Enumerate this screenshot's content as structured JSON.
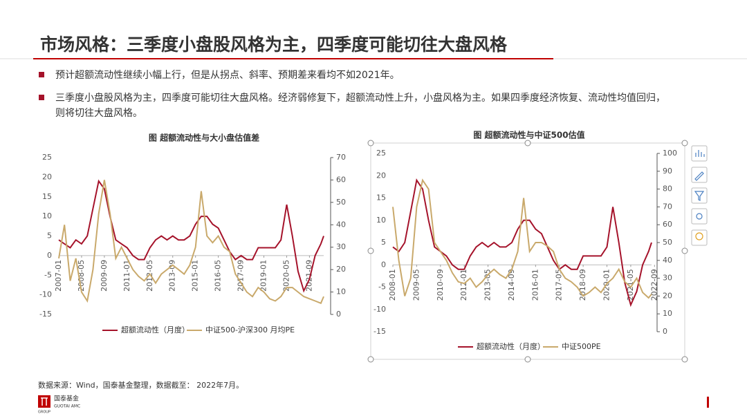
{
  "header": {
    "title": "市场风格：三季度小盘股风格为主，四季度可能切往大盘风格"
  },
  "bullets": [
    "预计超额流动性继续小幅上行，但是从拐点、斜率、预期差来看均不如2021年。",
    "三季度小盘股风格为主，四季度可能切往大盘风格。经济弱修复下，超额流动性上升，小盘风格为主。如果四季度经济恢复、流动性均值回归，",
    "则将切往大盘风格。"
  ],
  "chart_data": [
    {
      "type": "line",
      "title": "图 超额流动性与大小盘估值差",
      "x": [
        "2007-01",
        "2007-05",
        "2007-09",
        "2008-01",
        "2008-05",
        "2008-09",
        "2009-01",
        "2009-05",
        "2009-09",
        "2010-01",
        "2010-05",
        "2010-09",
        "2011-01",
        "2011-05",
        "2011-09",
        "2012-01",
        "2012-05",
        "2012-09",
        "2013-01",
        "2013-05",
        "2013-09",
        "2014-01",
        "2014-05",
        "2014-09",
        "2015-01",
        "2015-05",
        "2015-09",
        "2016-01",
        "2016-05",
        "2016-09",
        "2017-01",
        "2017-05",
        "2017-09",
        "2018-01",
        "2018-05",
        "2018-09",
        "2019-01",
        "2019-05",
        "2019-09",
        "2020-01",
        "2020-05",
        "2020-09",
        "2021-01",
        "2021-05",
        "2021-09",
        "2022-01",
        "2022-05",
        "2022-07"
      ],
      "xlim": [
        "2007-01",
        "2022-07"
      ],
      "xticks": [
        "2007-01",
        "2008-05",
        "2009-09",
        "2011-01",
        "2012-05",
        "2013-09",
        "2015-01",
        "2016-05",
        "2017-09",
        "2019-01",
        "2020-05",
        "2021-09"
      ],
      "ylim": [
        -15,
        25
      ],
      "yticks": [
        -15,
        -10,
        -5,
        0,
        5,
        10,
        15,
        20,
        25
      ],
      "y2lim": [
        0,
        70
      ],
      "y2ticks": [
        0,
        10,
        20,
        30,
        40,
        50,
        60,
        70
      ],
      "series": [
        {
          "name": "超额流动性（月度）",
          "color": "#a5122a",
          "values": [
            4,
            3,
            2,
            4,
            3,
            5,
            12,
            19,
            17,
            10,
            4,
            3,
            2,
            0,
            -1,
            -1,
            2,
            4,
            5,
            4,
            5,
            4,
            4,
            5,
            8,
            10,
            10,
            8,
            7,
            4,
            1,
            -1,
            0,
            -1,
            -1,
            2,
            2,
            2,
            2,
            4,
            13,
            5,
            -4,
            -9,
            -6,
            0,
            3,
            5
          ]
        },
        {
          "name": "中证500-沪深300 月均PE",
          "color": "#c9a96b",
          "axis": "y2",
          "values": [
            25,
            40,
            15,
            25,
            10,
            6,
            20,
            45,
            60,
            45,
            25,
            30,
            25,
            20,
            17,
            15,
            18,
            14,
            18,
            20,
            22,
            20,
            18,
            22,
            30,
            55,
            35,
            32,
            35,
            30,
            28,
            18,
            14,
            10,
            8,
            12,
            10,
            7,
            6,
            8,
            12,
            12,
            10,
            8,
            7,
            6,
            5,
            8
          ]
        }
      ]
    },
    {
      "type": "line",
      "title": "图 超额流动性与中证500估值",
      "x": [
        "2008-01",
        "2008-05",
        "2008-09",
        "2009-01",
        "2009-05",
        "2009-09",
        "2010-01",
        "2010-05",
        "2010-09",
        "2011-01",
        "2011-05",
        "2011-09",
        "2012-01",
        "2012-05",
        "2012-09",
        "2013-01",
        "2013-05",
        "2013-09",
        "2014-01",
        "2014-05",
        "2014-09",
        "2015-01",
        "2015-05",
        "2015-09",
        "2016-01",
        "2016-05",
        "2016-09",
        "2017-01",
        "2017-05",
        "2017-09",
        "2018-01",
        "2018-05",
        "2018-09",
        "2019-01",
        "2019-05",
        "2019-09",
        "2020-01",
        "2020-05",
        "2020-09",
        "2021-01",
        "2021-05",
        "2021-09",
        "2022-01",
        "2022-05",
        "2022-07"
      ],
      "xlim": [
        "2008-01",
        "2022-07"
      ],
      "xticks": [
        "2008-01",
        "2009-05",
        "2010-09",
        "2012-01",
        "2013-05",
        "2014-09",
        "2016-01",
        "2017-05",
        "2018-09",
        "2020-01",
        "2021-05",
        "2022-09"
      ],
      "ylim": [
        -15,
        25
      ],
      "yticks": [
        -15,
        -10,
        -5,
        0,
        5,
        10,
        15,
        20,
        25
      ],
      "y2lim": [
        0,
        100
      ],
      "y2ticks": [
        0,
        10,
        20,
        30,
        40,
        50,
        60,
        70,
        80,
        90,
        100
      ],
      "series": [
        {
          "name": "超额流动性（月度）",
          "color": "#a5122a",
          "values": [
            4,
            3,
            5,
            12,
            19,
            17,
            10,
            4,
            3,
            2,
            0,
            -1,
            -1,
            2,
            4,
            5,
            4,
            5,
            4,
            4,
            5,
            8,
            10,
            10,
            8,
            7,
            4,
            1,
            -1,
            0,
            -1,
            -1,
            2,
            2,
            2,
            2,
            4,
            13,
            5,
            -4,
            -9,
            -6,
            0,
            3,
            5
          ]
        },
        {
          "name": "中证500PE",
          "color": "#c9a96b",
          "axis": "y2",
          "values": [
            70,
            40,
            20,
            30,
            70,
            85,
            80,
            50,
            45,
            40,
            33,
            28,
            27,
            30,
            25,
            28,
            32,
            35,
            32,
            30,
            35,
            45,
            75,
            45,
            50,
            50,
            48,
            45,
            35,
            30,
            28,
            25,
            20,
            22,
            25,
            22,
            27,
            30,
            35,
            28,
            25,
            30,
            22,
            19,
            21
          ]
        }
      ]
    }
  ],
  "footer": {
    "source": "数据来源：Wind，国泰基金整理，数据截至： 2022年7月。",
    "logo_name": "国泰基金",
    "logo_en": "GUOTAI AMC",
    "logo_group": "GROUP"
  }
}
